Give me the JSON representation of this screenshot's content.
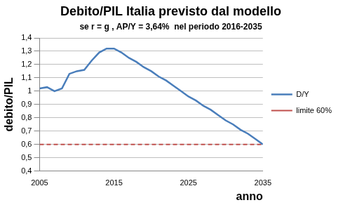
{
  "chart_data": {
    "type": "line",
    "title": "Debito/PIL Italia previsto dal modello",
    "subtitle": "se r = g , AP/Y = 3,64%  nel periodo 2016-2035",
    "x_label": "anno",
    "y_label": "debito/PIL",
    "x": [
      2005,
      2006,
      2007,
      2008,
      2009,
      2010,
      2011,
      2012,
      2013,
      2014,
      2015,
      2016,
      2017,
      2018,
      2019,
      2020,
      2021,
      2022,
      2023,
      2024,
      2025,
      2026,
      2027,
      2028,
      2029,
      2030,
      2031,
      2032,
      2033,
      2034,
      2035
    ],
    "series": [
      {
        "name": "D/Y",
        "color": "#4a7ebb",
        "line_style": "solid",
        "values": [
          1.02,
          1.03,
          1.0,
          1.02,
          1.13,
          1.15,
          1.16,
          1.23,
          1.29,
          1.32,
          1.32,
          1.29,
          1.25,
          1.22,
          1.18,
          1.15,
          1.11,
          1.08,
          1.04,
          1.0,
          0.96,
          0.93,
          0.89,
          0.86,
          0.82,
          0.78,
          0.75,
          0.71,
          0.68,
          0.64,
          0.6
        ]
      },
      {
        "name": "limite 60%",
        "color": "#c0504d",
        "line_style": "dashed",
        "values": [
          0.6,
          0.6,
          0.6,
          0.6,
          0.6,
          0.6,
          0.6,
          0.6,
          0.6,
          0.6,
          0.6,
          0.6,
          0.6,
          0.6,
          0.6,
          0.6,
          0.6,
          0.6,
          0.6,
          0.6,
          0.6,
          0.6,
          0.6,
          0.6,
          0.6,
          0.6,
          0.6,
          0.6,
          0.6,
          0.6,
          0.6
        ]
      }
    ],
    "xlim": [
      2005,
      2035
    ],
    "xticks": [
      2005,
      2015,
      2025,
      2035
    ],
    "ylim": [
      0.4,
      1.4
    ],
    "yticks": [
      {
        "value": 0.4,
        "label": "0,4"
      },
      {
        "value": 0.5,
        "label": "0,5"
      },
      {
        "value": 0.6,
        "label": "0,6"
      },
      {
        "value": 0.7,
        "label": "0,7"
      },
      {
        "value": 0.8,
        "label": "0,8"
      },
      {
        "value": 0.9,
        "label": "0,9"
      },
      {
        "value": 1,
        "label": "1"
      },
      {
        "value": 1.1,
        "label": "1,1"
      },
      {
        "value": 1.2,
        "label": "1,2"
      },
      {
        "value": 1.3,
        "label": "1,3"
      },
      {
        "value": 1.4,
        "label": "1,4"
      }
    ],
    "grid": "y",
    "legend": "right"
  }
}
